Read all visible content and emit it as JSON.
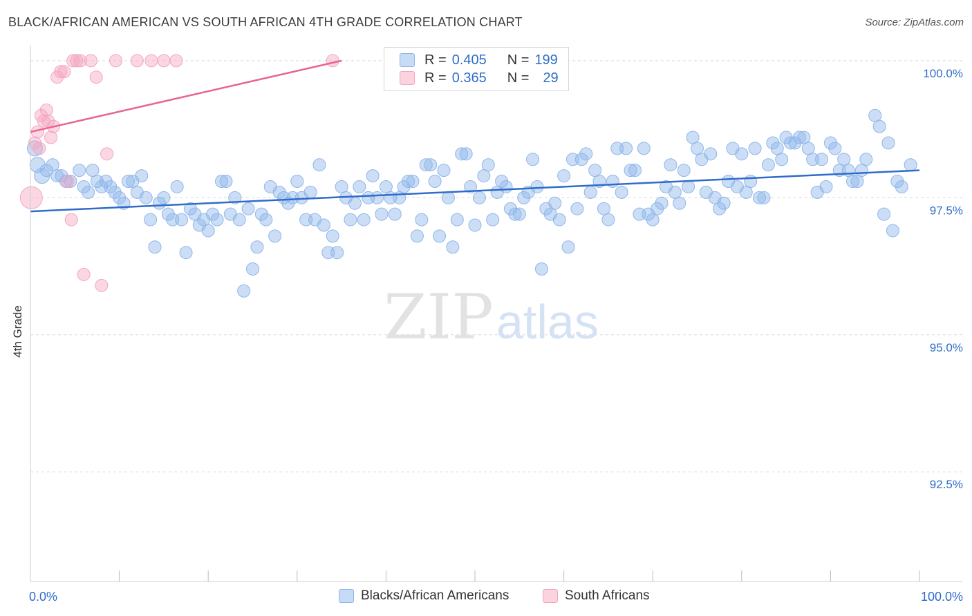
{
  "title": "BLACK/AFRICAN AMERICAN VS SOUTH AFRICAN 4TH GRADE CORRELATION CHART",
  "source": "Source: ZipAtlas.com",
  "watermark": {
    "zip": "ZIP",
    "atlas": "atlas"
  },
  "legend_top": [
    {
      "r_label": "R =",
      "r_value": "0.405",
      "n_label": "N =",
      "n_value": "199",
      "color": "#8fb6ea"
    },
    {
      "r_label": "R =",
      "r_value": "0.365",
      "n_label": "N =",
      "n_value": "29",
      "color": "#f3a6bf"
    }
  ],
  "colors": {
    "blue": "#8fb6ea",
    "blue_line": "#2f6cc9",
    "pink": "#f3a6bf",
    "pink_line": "#e8668f",
    "tick_text": "#2f6cc9",
    "grid": "#d9d9d9"
  },
  "chart_data": {
    "type": "scatter",
    "title": "BLACK/AFRICAN AMERICAN VS SOUTH AFRICAN 4TH GRADE CORRELATION CHART",
    "xlabel": "",
    "ylabel": "4th Grade",
    "xlim": [
      0,
      100
    ],
    "ylim": [
      90.5,
      100.2
    ],
    "x_tick_labels": [
      "0.0%",
      "100.0%"
    ],
    "y_ticks": [
      92.5,
      95.0,
      97.5,
      100.0
    ],
    "y_tick_labels": [
      "92.5%",
      "95.0%",
      "97.5%",
      "100.0%"
    ],
    "grid": true,
    "legend_position": "bottom",
    "series": [
      {
        "name": "Blacks/African Americans",
        "color": "#8fb6ea",
        "trend": {
          "x": [
            0,
            100
          ],
          "y": [
            97.25,
            98.0
          ]
        },
        "points": [
          [
            0.5,
            98.4
          ],
          [
            0.8,
            98.1
          ],
          [
            1.3,
            97.9
          ],
          [
            1.8,
            98.0
          ],
          [
            2.5,
            98.1
          ],
          [
            3.0,
            97.9
          ],
          [
            3.5,
            97.9
          ],
          [
            4.0,
            97.8
          ],
          [
            4.5,
            97.8
          ],
          [
            5.5,
            98.0
          ],
          [
            6.0,
            97.7
          ],
          [
            6.5,
            97.6
          ],
          [
            7.0,
            98.0
          ],
          [
            7.5,
            97.8
          ],
          [
            8.0,
            97.7
          ],
          [
            8.5,
            97.8
          ],
          [
            9.0,
            97.7
          ],
          [
            9.5,
            97.6
          ],
          [
            10.0,
            97.5
          ],
          [
            10.5,
            97.4
          ],
          [
            11.0,
            97.8
          ],
          [
            11.5,
            97.8
          ],
          [
            12.0,
            97.6
          ],
          [
            12.5,
            97.9
          ],
          [
            13.0,
            97.5
          ],
          [
            13.5,
            97.1
          ],
          [
            14.0,
            96.6
          ],
          [
            14.5,
            97.4
          ],
          [
            15.0,
            97.5
          ],
          [
            15.5,
            97.2
          ],
          [
            16.0,
            97.1
          ],
          [
            16.5,
            97.7
          ],
          [
            17.0,
            97.1
          ],
          [
            17.5,
            96.5
          ],
          [
            18.0,
            97.3
          ],
          [
            18.5,
            97.2
          ],
          [
            19.0,
            97.0
          ],
          [
            19.5,
            97.1
          ],
          [
            20.0,
            96.9
          ],
          [
            20.5,
            97.2
          ],
          [
            21.0,
            97.1
          ],
          [
            21.5,
            97.8
          ],
          [
            22.0,
            97.8
          ],
          [
            22.5,
            97.2
          ],
          [
            23.0,
            97.5
          ],
          [
            23.5,
            97.1
          ],
          [
            24.0,
            95.8
          ],
          [
            24.5,
            97.3
          ],
          [
            25.0,
            96.2
          ],
          [
            25.5,
            96.6
          ],
          [
            26.0,
            97.2
          ],
          [
            26.5,
            97.1
          ],
          [
            27.0,
            97.7
          ],
          [
            27.5,
            96.8
          ],
          [
            28.0,
            97.6
          ],
          [
            28.5,
            97.5
          ],
          [
            29.0,
            97.4
          ],
          [
            29.5,
            97.5
          ],
          [
            30.0,
            97.8
          ],
          [
            30.5,
            97.5
          ],
          [
            31.0,
            97.1
          ],
          [
            31.5,
            97.6
          ],
          [
            32.0,
            97.1
          ],
          [
            32.5,
            98.1
          ],
          [
            33.0,
            97.0
          ],
          [
            33.5,
            96.5
          ],
          [
            34.0,
            96.8
          ],
          [
            34.5,
            96.5
          ],
          [
            35.0,
            97.7
          ],
          [
            35.5,
            97.5
          ],
          [
            36.0,
            97.1
          ],
          [
            36.5,
            97.4
          ],
          [
            37.0,
            97.7
          ],
          [
            37.5,
            97.1
          ],
          [
            38.0,
            97.5
          ],
          [
            38.5,
            97.9
          ],
          [
            39.0,
            97.5
          ],
          [
            39.5,
            97.2
          ],
          [
            40.0,
            97.7
          ],
          [
            40.5,
            97.5
          ],
          [
            41.0,
            97.2
          ],
          [
            41.5,
            97.5
          ],
          [
            42.0,
            97.7
          ],
          [
            42.5,
            97.8
          ],
          [
            43.0,
            97.8
          ],
          [
            43.5,
            96.8
          ],
          [
            44.0,
            97.1
          ],
          [
            44.5,
            98.1
          ],
          [
            45.0,
            98.1
          ],
          [
            45.5,
            97.8
          ],
          [
            46.0,
            96.8
          ],
          [
            46.5,
            98.0
          ],
          [
            47.0,
            97.5
          ],
          [
            47.5,
            96.6
          ],
          [
            48.0,
            97.1
          ],
          [
            48.5,
            98.3
          ],
          [
            49.0,
            98.3
          ],
          [
            49.5,
            97.7
          ],
          [
            50.0,
            97.0
          ],
          [
            50.5,
            97.5
          ],
          [
            51.0,
            97.9
          ],
          [
            51.5,
            98.1
          ],
          [
            52.0,
            97.1
          ],
          [
            52.5,
            97.6
          ],
          [
            53.0,
            97.8
          ],
          [
            53.5,
            97.7
          ],
          [
            54.0,
            97.3
          ],
          [
            54.5,
            97.2
          ],
          [
            55.0,
            97.2
          ],
          [
            55.5,
            97.5
          ],
          [
            56.0,
            97.6
          ],
          [
            56.5,
            98.2
          ],
          [
            57.0,
            97.7
          ],
          [
            57.5,
            96.2
          ],
          [
            58.0,
            97.3
          ],
          [
            58.5,
            97.2
          ],
          [
            59.0,
            97.4
          ],
          [
            59.5,
            97.1
          ],
          [
            60.0,
            97.9
          ],
          [
            60.5,
            96.6
          ],
          [
            61.0,
            98.2
          ],
          [
            61.5,
            97.3
          ],
          [
            62.0,
            98.2
          ],
          [
            62.5,
            98.3
          ],
          [
            63.0,
            97.6
          ],
          [
            63.5,
            98.0
          ],
          [
            64.0,
            97.8
          ],
          [
            64.5,
            97.3
          ],
          [
            65.0,
            97.1
          ],
          [
            65.5,
            97.8
          ],
          [
            66.0,
            98.4
          ],
          [
            66.5,
            97.6
          ],
          [
            67.0,
            98.4
          ],
          [
            67.5,
            98.0
          ],
          [
            68.0,
            98.0
          ],
          [
            68.5,
            97.2
          ],
          [
            69.0,
            98.4
          ],
          [
            69.5,
            97.2
          ],
          [
            70.0,
            97.1
          ],
          [
            70.5,
            97.3
          ],
          [
            71.0,
            97.4
          ],
          [
            71.5,
            97.7
          ],
          [
            72.0,
            98.1
          ],
          [
            72.5,
            97.6
          ],
          [
            73.0,
            97.4
          ],
          [
            73.5,
            98.0
          ],
          [
            74.0,
            97.7
          ],
          [
            74.5,
            98.6
          ],
          [
            75.0,
            98.4
          ],
          [
            75.5,
            98.2
          ],
          [
            76.0,
            97.6
          ],
          [
            76.5,
            98.3
          ],
          [
            77.0,
            97.5
          ],
          [
            77.5,
            97.3
          ],
          [
            78.0,
            97.4
          ],
          [
            78.5,
            97.8
          ],
          [
            79.0,
            98.4
          ],
          [
            79.5,
            97.7
          ],
          [
            80.0,
            98.3
          ],
          [
            80.5,
            97.6
          ],
          [
            81.0,
            97.8
          ],
          [
            81.5,
            98.4
          ],
          [
            82.0,
            97.5
          ],
          [
            82.5,
            97.5
          ],
          [
            83.0,
            98.1
          ],
          [
            83.5,
            98.5
          ],
          [
            84.0,
            98.4
          ],
          [
            84.5,
            98.2
          ],
          [
            85.0,
            98.6
          ],
          [
            85.5,
            98.5
          ],
          [
            86.0,
            98.5
          ],
          [
            86.5,
            98.6
          ],
          [
            87.0,
            98.6
          ],
          [
            87.5,
            98.4
          ],
          [
            88.0,
            98.2
          ],
          [
            88.5,
            97.6
          ],
          [
            89.0,
            98.2
          ],
          [
            89.5,
            97.7
          ],
          [
            90.0,
            98.5
          ],
          [
            90.5,
            98.4
          ],
          [
            91.0,
            98.0
          ],
          [
            91.5,
            98.2
          ],
          [
            92.0,
            98.0
          ],
          [
            92.5,
            97.8
          ],
          [
            93.0,
            97.8
          ],
          [
            93.5,
            98.0
          ],
          [
            94.0,
            98.2
          ],
          [
            95.0,
            99.0
          ],
          [
            95.5,
            98.8
          ],
          [
            96.0,
            97.2
          ],
          [
            96.5,
            98.5
          ],
          [
            97.0,
            96.9
          ],
          [
            97.5,
            97.8
          ],
          [
            98.0,
            97.7
          ],
          [
            99.0,
            98.1
          ]
        ]
      },
      {
        "name": "South Africans",
        "color": "#f3a6bf",
        "trend": {
          "x": [
            0,
            35
          ],
          "y": [
            98.7,
            100.0
          ]
        },
        "points": [
          [
            0.1,
            97.5
          ],
          [
            0.5,
            98.5
          ],
          [
            0.8,
            98.7
          ],
          [
            1.0,
            98.4
          ],
          [
            1.2,
            99.0
          ],
          [
            1.5,
            98.9
          ],
          [
            1.8,
            99.1
          ],
          [
            2.0,
            98.9
          ],
          [
            2.3,
            98.6
          ],
          [
            2.6,
            98.8
          ],
          [
            3.0,
            99.7
          ],
          [
            3.4,
            99.8
          ],
          [
            3.8,
            99.8
          ],
          [
            4.2,
            97.8
          ],
          [
            4.6,
            97.1
          ],
          [
            4.8,
            100.0
          ],
          [
            5.2,
            100.0
          ],
          [
            5.6,
            100.0
          ],
          [
            6.0,
            96.1
          ],
          [
            6.8,
            100.0
          ],
          [
            7.4,
            99.7
          ],
          [
            8.0,
            95.9
          ],
          [
            8.6,
            98.3
          ],
          [
            9.6,
            100.0
          ],
          [
            12.0,
            100.0
          ],
          [
            13.6,
            100.0
          ],
          [
            15.0,
            100.0
          ],
          [
            16.4,
            100.0
          ],
          [
            34.0,
            100.0
          ]
        ]
      }
    ]
  }
}
